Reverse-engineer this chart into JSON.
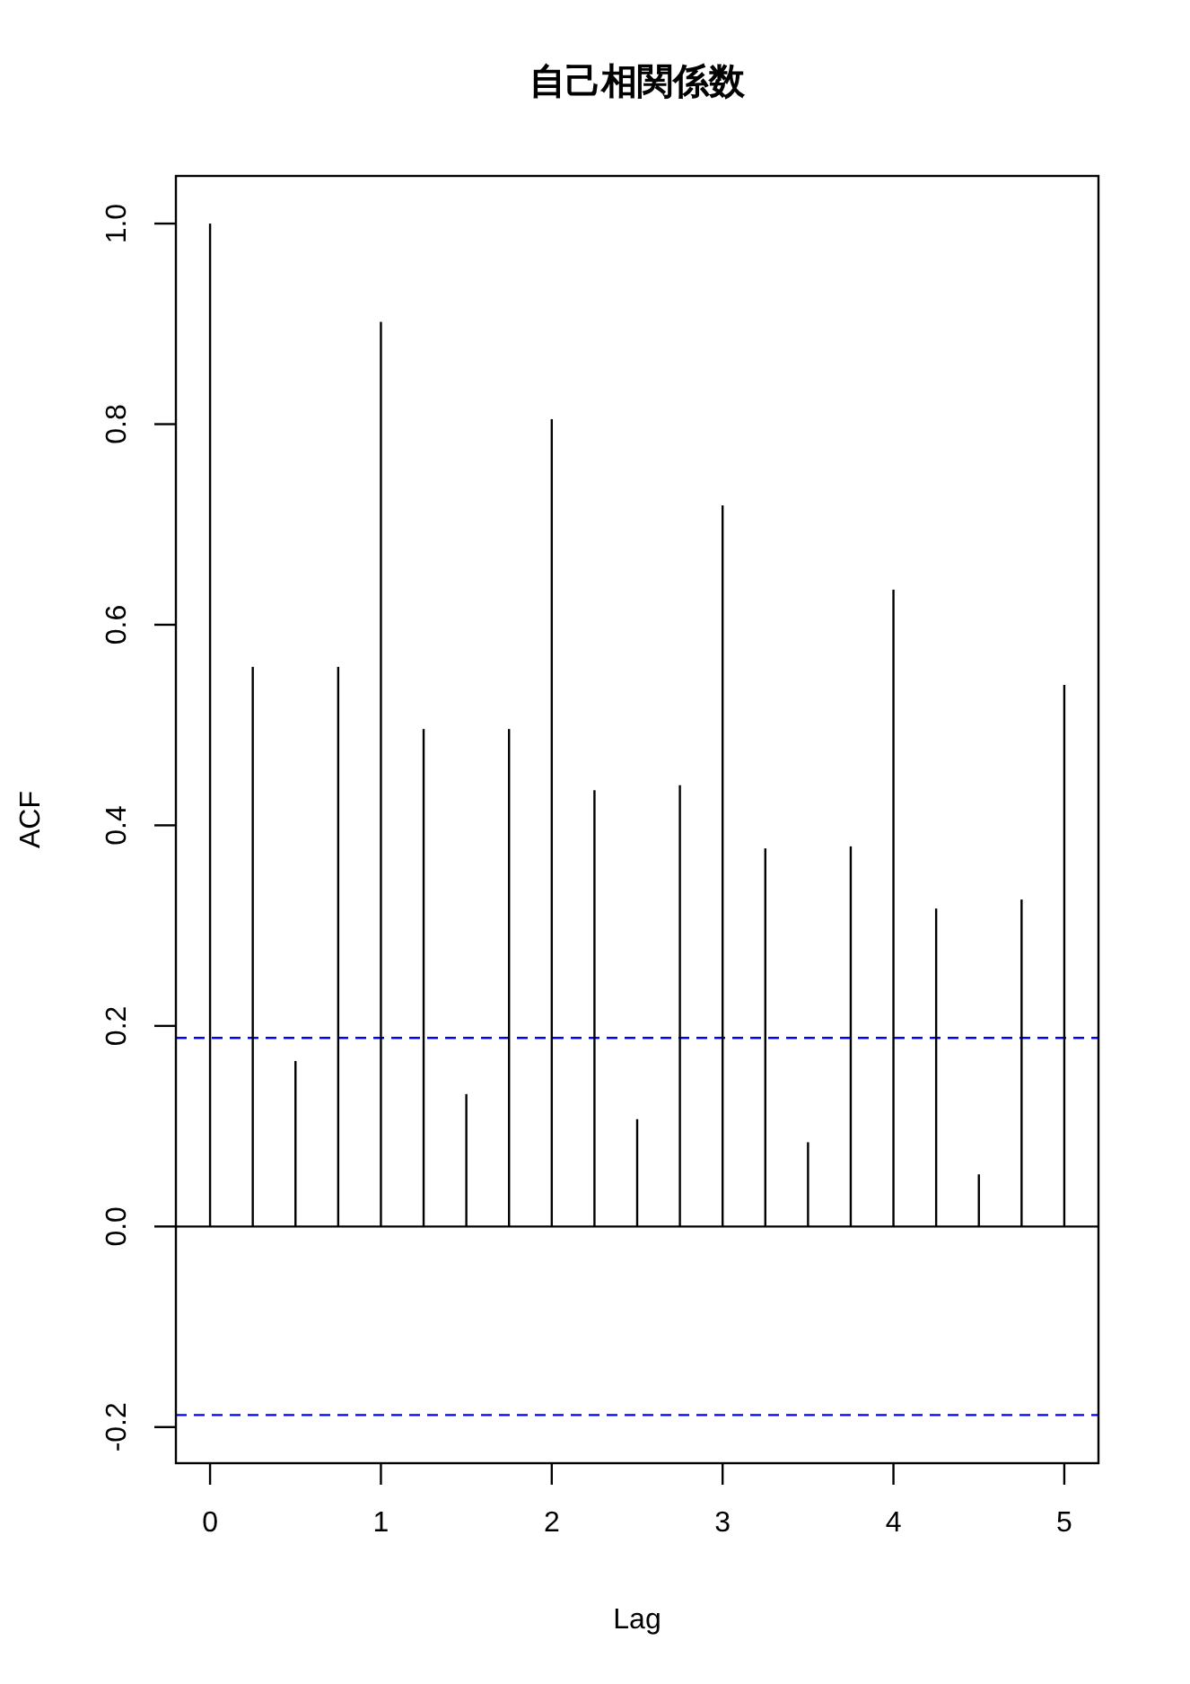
{
  "chart_data": {
    "type": "bar",
    "title": "自己相関係数",
    "xlabel": "Lag",
    "ylabel": "ACF",
    "x": [
      0,
      0.25,
      0.5,
      0.75,
      1,
      1.25,
      1.5,
      1.75,
      2,
      2.25,
      2.5,
      2.75,
      3,
      3.25,
      3.5,
      3.75,
      4,
      4.25,
      4.5,
      4.75,
      5
    ],
    "values": [
      1.0,
      0.558,
      0.165,
      0.558,
      0.902,
      0.496,
      0.132,
      0.496,
      0.805,
      0.435,
      0.107,
      0.44,
      0.719,
      0.377,
      0.084,
      0.379,
      0.635,
      0.317,
      0.052,
      0.326,
      0.54
    ],
    "color": "#000000",
    "xlim": [
      -0.2,
      5.2
    ],
    "xticks": [
      0,
      1,
      2,
      3,
      4,
      5
    ],
    "ylim": [
      -0.236,
      1.0475
    ],
    "yticks": [
      -0.2,
      {
        "value": 0,
        "label": "0.0"
      },
      0.2,
      0.4,
      0.6,
      0.8,
      {
        "value": 1,
        "label": "1.0"
      }
    ],
    "ref_lines": [
      {
        "axis": "y",
        "value": 0,
        "color": "#000000",
        "line_style": "solid"
      },
      {
        "axis": "y",
        "value": 0.188,
        "color": "#0000ff",
        "line_style": "dashed"
      },
      {
        "axis": "y",
        "value": -0.188,
        "color": "#0000ff",
        "line_style": "dashed"
      }
    ],
    "grid": false
  }
}
